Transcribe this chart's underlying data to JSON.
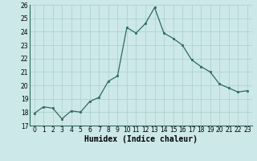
{
  "x": [
    0,
    1,
    2,
    3,
    4,
    5,
    6,
    7,
    8,
    9,
    10,
    11,
    12,
    13,
    14,
    15,
    16,
    17,
    18,
    19,
    20,
    21,
    22,
    23
  ],
  "y": [
    17.9,
    18.4,
    18.3,
    17.5,
    18.1,
    18.0,
    18.8,
    19.1,
    20.3,
    20.7,
    24.3,
    23.9,
    24.6,
    25.8,
    23.9,
    23.5,
    23.0,
    21.9,
    21.4,
    21.0,
    20.1,
    19.8,
    19.5,
    19.6
  ],
  "title": "",
  "xlabel": "Humidex (Indice chaleur)",
  "ylabel": "",
  "ylim": [
    17,
    26
  ],
  "xlim": [
    -0.5,
    23.5
  ],
  "yticks": [
    17,
    18,
    19,
    20,
    21,
    22,
    23,
    24,
    25,
    26
  ],
  "xticks": [
    0,
    1,
    2,
    3,
    4,
    5,
    6,
    7,
    8,
    9,
    10,
    11,
    12,
    13,
    14,
    15,
    16,
    17,
    18,
    19,
    20,
    21,
    22,
    23
  ],
  "line_color": "#2e6b5e",
  "marker_color": "#2e6b5e",
  "bg_color": "#cce8e8",
  "grid_color": "#aacece",
  "tick_fontsize": 5.5,
  "xlabel_fontsize": 7,
  "marker_size": 2.0,
  "line_width": 0.9
}
